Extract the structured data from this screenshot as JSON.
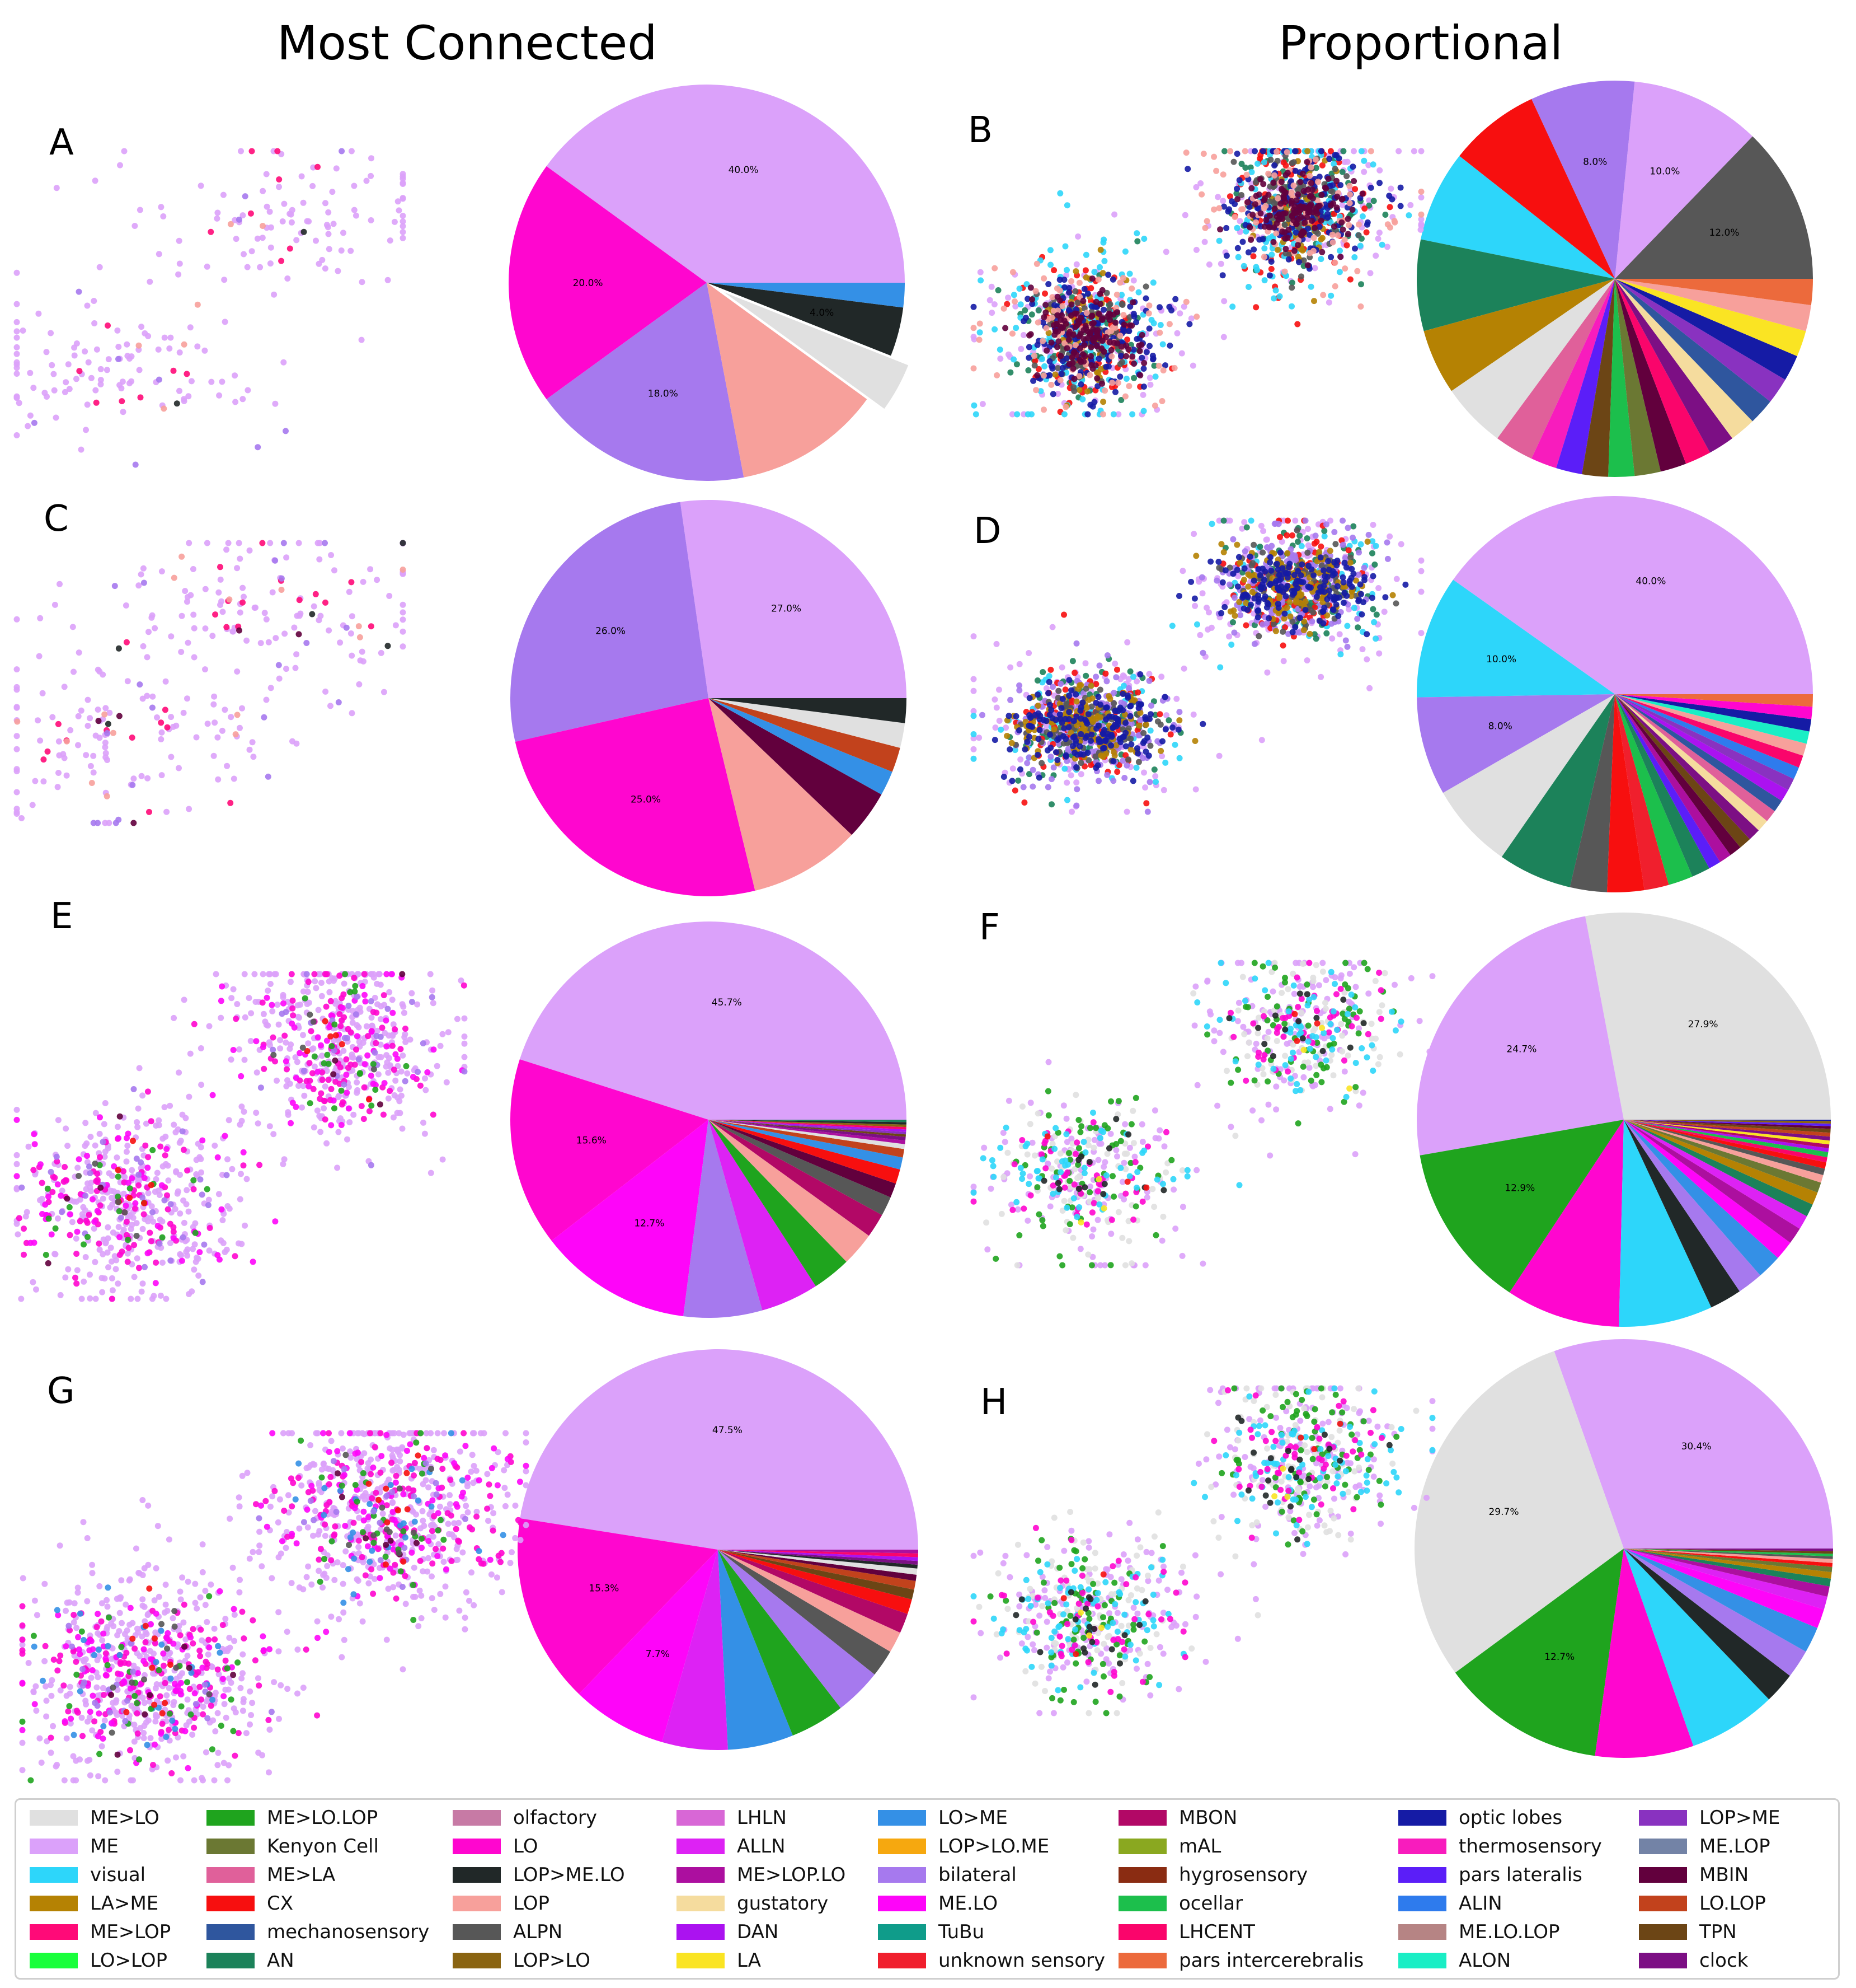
{
  "titles": {
    "left": "Most Connected",
    "right": "Proportional"
  },
  "colors": {
    "ME>LO": "#e0e0e0",
    "ME": "#dba1fa",
    "visual": "#2dd6fa",
    "LA>ME": "#b58203",
    "ME>LOP": "#ff0a78",
    "LO>LOP": "#1aff3c",
    "ME>LO.LOP": "#1fa41e",
    "Kenyon Cell": "#6b7833",
    "ME>LA": "#e0609a",
    "CX": "#f70f0f",
    "mechanosensory": "#2f569e",
    "AN": "#1c825a",
    "olfactory": "#c77aa5",
    "LO": "#ff06cf",
    "LOP>ME.LO": "#212828",
    "LOP": "#f7a09b",
    "ALPN": "#575757",
    "LOP>LO": "#8a6411",
    "LHLN": "#d867d6",
    "ALLN": "#dd22f4",
    "ME>LOP.LO": "#ac0f9f",
    "gustatory": "#f5dc9e",
    "DAN": "#ab12f0",
    "LA": "#fae423",
    "LO>ME": "#3490e6",
    "LOP>LO.ME": "#f6a80f",
    "bilateral": "#a679ee",
    "ME.LO": "#fe05f9",
    "TuBu": "#0f9c8a",
    "unknown sensory": "#f01f2d",
    "MBON": "#b20866",
    "mAL": "#8aa820",
    "hygrosensory": "#8a2c12",
    "ocellar": "#1cbf4c",
    "LHCENT": "#fa056b",
    "pars intercerebralis": "#ec6a3c",
    "optic lobes": "#151ba5",
    "thermosensory": "#f81cbd",
    "pars lateralis": "#5b1ef8",
    "ALIN": "#2e7bed",
    "ME.LO.LOP": "#b68484",
    "ALON": "#1aeec5",
    "LOP>ME": "#8932c0",
    "ME.LOP": "#7383a6",
    "MBIN": "#62003d",
    "LO.LOP": "#c2421c",
    "TPN": "#6c4515",
    "clock": "#7c0f84"
  },
  "legend": {
    "columns": [
      [
        "ME>LO",
        "ME",
        "visual",
        "LA>ME",
        "ME>LOP",
        "LO>LOP"
      ],
      [
        "ME>LO.LOP",
        "Kenyon Cell",
        "ME>LA",
        "CX",
        "mechanosensory",
        "AN"
      ],
      [
        "olfactory",
        "LO",
        "LOP>ME.LO",
        "LOP",
        "ALPN",
        "LOP>LO"
      ],
      [
        "LHLN",
        "ALLN",
        "ME>LOP.LO",
        "gustatory",
        "DAN",
        "LA"
      ],
      [
        "LO>ME",
        "LOP>LO.ME",
        "bilateral",
        "ME.LO",
        "TuBu",
        "unknown sensory"
      ],
      [
        "MBON",
        "mAL",
        "hygrosensory",
        "ocellar",
        "LHCENT",
        "pars intercerebralis"
      ],
      [
        "optic lobes",
        "thermosensory",
        "pars lateralis",
        "ALIN",
        "ME.LO.LOP",
        "ALON"
      ],
      [
        "LOP>ME",
        "ME.LOP",
        "MBIN",
        "LO.LOP",
        "TPN",
        "clock"
      ]
    ]
  },
  "chart_data": [
    {
      "panel": "A",
      "type": "pie",
      "start_angle": 0,
      "slices": [
        [
          "ME",
          40,
          "40.0%"
        ],
        [
          "LO",
          20,
          "20.0%"
        ],
        [
          "bilateral",
          18,
          "18.0%"
        ],
        [
          "LOP",
          12,
          ""
        ],
        [
          "ME>LO",
          4,
          ""
        ],
        [
          "LOP>ME.LO",
          4,
          "4.0%"
        ],
        [
          "LO>ME",
          2,
          ""
        ]
      ],
      "explode": [
        4
      ],
      "scatter": [
        [
          "ME",
          200,
          460,
          180
        ],
        [
          "ME>LOP",
          15,
          260,
          180
        ],
        [
          "LOP",
          6,
          300,
          260
        ],
        [
          "LOP>ME.LO",
          2,
          240,
          140
        ],
        [
          "bilateral",
          10,
          170,
          560
        ]
      ]
    },
    {
      "panel": "B",
      "type": "pie",
      "start_angle": 0,
      "slices": [
        [
          "ALPN",
          12,
          "12.0%"
        ],
        [
          "ME",
          10,
          "10.0%"
        ],
        [
          "bilateral",
          8,
          "8.0%"
        ],
        [
          "CX",
          7,
          ""
        ],
        [
          "visual",
          7,
          ""
        ],
        [
          "AN",
          7,
          ""
        ],
        [
          "LA>ME",
          5,
          ""
        ],
        [
          "ME>LO",
          5,
          ""
        ],
        [
          "ME>LA",
          3,
          ""
        ],
        [
          "thermosensory",
          2,
          ""
        ],
        [
          "pars lateralis",
          2,
          ""
        ],
        [
          "TPN",
          2,
          ""
        ],
        [
          "ocellar",
          2,
          ""
        ],
        [
          "Kenyon Cell",
          2,
          ""
        ],
        [
          "MBIN",
          2,
          ""
        ],
        [
          "LHCENT",
          2,
          ""
        ],
        [
          "clock",
          2,
          ""
        ],
        [
          "gustatory",
          2,
          ""
        ],
        [
          "mechanosensory",
          2,
          ""
        ],
        [
          "LOP>ME",
          2,
          ""
        ],
        [
          "optic lobes",
          2,
          ""
        ],
        [
          "LA",
          2,
          ""
        ],
        [
          "LOP",
          2,
          ""
        ],
        [
          "pars intercerebralis",
          2,
          ""
        ]
      ],
      "scatter": [
        [
          "ME",
          220,
          320,
          200
        ],
        [
          "AN",
          140,
          180,
          150
        ],
        [
          "CX",
          200,
          150,
          200
        ],
        [
          "visual",
          260,
          200,
          250
        ],
        [
          "LA>ME",
          120,
          100,
          150
        ],
        [
          "ALPN",
          200,
          120,
          120
        ],
        [
          "optic lobes",
          300,
          200,
          150
        ],
        [
          "LOP",
          180,
          260,
          150
        ],
        [
          "MBIN",
          260,
          140,
          100
        ]
      ]
    },
    {
      "panel": "C",
      "type": "pie",
      "start_angle": 0,
      "slices": [
        [
          "ME",
          27,
          "27.0%"
        ],
        [
          "bilateral",
          26,
          "26.0%"
        ],
        [
          "LO",
          25,
          "25.0%"
        ],
        [
          "LOP",
          9,
          ""
        ],
        [
          "MBIN",
          4,
          ""
        ],
        [
          "LO>ME",
          2,
          ""
        ],
        [
          "LO.LOP",
          2,
          ""
        ],
        [
          "ME>LO",
          2,
          ""
        ],
        [
          "LOP>ME.LO",
          2,
          ""
        ]
      ],
      "scatter": [
        [
          "ME",
          230,
          520,
          230
        ],
        [
          "ME>LOP",
          25,
          300,
          200
        ],
        [
          "LOP",
          15,
          340,
          180
        ],
        [
          "bilateral",
          20,
          160,
          600
        ],
        [
          "MBIN",
          5,
          260,
          260
        ],
        [
          "LOP>ME.LO",
          5,
          300,
          200
        ]
      ]
    },
    {
      "panel": "D",
      "type": "pie",
      "start_angle": 0,
      "slices": [
        [
          "ME",
          40,
          "40.0%"
        ],
        [
          "visual",
          10,
          "10.0%"
        ],
        [
          "bilateral",
          8,
          "8.0%"
        ],
        [
          "ME>LO",
          7,
          ""
        ],
        [
          "AN",
          6,
          ""
        ],
        [
          "ALPN",
          3,
          ""
        ],
        [
          "CX",
          3,
          ""
        ],
        [
          "unknown sensory",
          2,
          ""
        ],
        [
          "ocellar",
          2,
          ""
        ],
        [
          "AN",
          1.5,
          ""
        ],
        [
          "pars lateralis",
          1,
          ""
        ],
        [
          "ME>LOP.LO",
          1,
          ""
        ],
        [
          "MBIN",
          1,
          ""
        ],
        [
          "TPN",
          1,
          ""
        ],
        [
          "clock",
          1,
          ""
        ],
        [
          "gustatory",
          1,
          ""
        ],
        [
          "ME>LA",
          1,
          ""
        ],
        [
          "mechanosensory",
          1,
          ""
        ],
        [
          "DAN",
          1,
          ""
        ],
        [
          "LOP>ME",
          1,
          ""
        ],
        [
          "ALIN",
          1,
          ""
        ],
        [
          "LHCENT",
          1,
          ""
        ],
        [
          "LOP",
          1,
          ""
        ],
        [
          "ALON",
          1,
          ""
        ],
        [
          "optic lobes",
          1,
          ""
        ],
        [
          "LO",
          1,
          ""
        ],
        [
          "pars intercerebralis",
          1,
          ""
        ]
      ],
      "scatter": [
        [
          "ME",
          320,
          280,
          200
        ],
        [
          "visual",
          120,
          260,
          150
        ],
        [
          "AN",
          160,
          180,
          150
        ],
        [
          "CX",
          180,
          150,
          150
        ],
        [
          "bilateral",
          320,
          200,
          150
        ],
        [
          "ALPN",
          200,
          160,
          100
        ],
        [
          "LA>ME",
          240,
          180,
          100
        ],
        [
          "optic lobes",
          330,
          220,
          100
        ]
      ]
    },
    {
      "panel": "E",
      "type": "pie",
      "start_angle": 0,
      "slices": [
        [
          "ME",
          45.7,
          "45.7%"
        ],
        [
          "LO",
          15.6,
          "15.6%"
        ],
        [
          "ME.LO",
          12.7,
          "12.7%"
        ],
        [
          "bilateral",
          6.5,
          ""
        ],
        [
          "ALLN",
          4.8,
          ""
        ],
        [
          "ME>LO.LOP",
          3.2,
          ""
        ],
        [
          "LOP",
          2.8,
          ""
        ],
        [
          "MBON",
          2.0,
          ""
        ],
        [
          "ALPN",
          1.6,
          ""
        ],
        [
          "MBIN",
          1.2,
          ""
        ],
        [
          "CX",
          1.2,
          ""
        ],
        [
          "LO>ME",
          1.0,
          ""
        ],
        [
          "LO.LOP",
          0.7,
          ""
        ],
        [
          "ME>LO",
          0.4,
          ""
        ],
        [
          "ME>LOP.LO",
          0.3,
          ""
        ],
        [
          "clock",
          0.3,
          ""
        ],
        [
          "TPN",
          0.2,
          ""
        ],
        [
          "LOP>ME",
          0.2,
          ""
        ],
        [
          "DAN",
          0.2,
          ""
        ],
        [
          "LHCENT",
          0.2,
          ""
        ],
        [
          "LOP>LO",
          0.2,
          ""
        ],
        [
          "LOP>ME.LO",
          0.2,
          ""
        ],
        [
          "AN",
          0.2,
          ""
        ]
      ],
      "scatter": [
        [
          "ME",
          700,
          280,
          260
        ],
        [
          "LO",
          180,
          260,
          200
        ],
        [
          "ME.LO",
          120,
          300,
          200
        ],
        [
          "bilateral",
          60,
          260,
          200
        ],
        [
          "ME>LO.LOP",
          40,
          180,
          200
        ],
        [
          "CX",
          12,
          60,
          200
        ],
        [
          "MBIN",
          8,
          200,
          200
        ],
        [
          "ALPN",
          10,
          120,
          160
        ]
      ]
    },
    {
      "panel": "F",
      "type": "pie",
      "start_angle": 0,
      "slices": [
        [
          "ME>LO",
          27.9,
          "27.9%"
        ],
        [
          "ME",
          24.7,
          "24.7%"
        ],
        [
          "ME>LO.LOP",
          12.9,
          "12.9%"
        ],
        [
          "LO",
          8.9,
          ""
        ],
        [
          "visual",
          7.3,
          ""
        ],
        [
          "LOP>ME.LO",
          2.5,
          ""
        ],
        [
          "bilateral",
          2.0,
          ""
        ],
        [
          "LO>ME",
          1.9,
          ""
        ],
        [
          "ME.LO",
          1.5,
          ""
        ],
        [
          "ME>LOP.LO",
          1.3,
          ""
        ],
        [
          "ALLN",
          1.1,
          ""
        ],
        [
          "AN",
          1.0,
          ""
        ],
        [
          "LA>ME",
          1.0,
          ""
        ],
        [
          "Kenyon Cell",
          0.8,
          ""
        ],
        [
          "LOP",
          0.6,
          ""
        ],
        [
          "ALPN",
          0.5,
          ""
        ],
        [
          "CX",
          0.5,
          ""
        ],
        [
          "LHCENT",
          0.4,
          ""
        ],
        [
          "ocellar",
          0.4,
          ""
        ],
        [
          "DAN",
          0.3,
          ""
        ],
        [
          "MBON",
          0.3,
          ""
        ],
        [
          "LA",
          0.3,
          ""
        ],
        [
          "clock",
          0.3,
          ""
        ],
        [
          "LO.LOP",
          0.3,
          ""
        ],
        [
          "TPN",
          0.3,
          ""
        ],
        [
          "MBIN",
          0.2,
          ""
        ],
        [
          "pars lateralis",
          0.2,
          ""
        ],
        [
          "LOP>LO",
          0.2,
          ""
        ],
        [
          "optic lobes",
          0.1,
          ""
        ]
      ],
      "scatter": [
        [
          "ME",
          260,
          260,
          220
        ],
        [
          "ME>LO",
          160,
          240,
          200
        ],
        [
          "ME>LO.LOP",
          120,
          200,
          220
        ],
        [
          "LO",
          90,
          200,
          150
        ],
        [
          "visual",
          120,
          260,
          150
        ],
        [
          "LOP>ME.LO",
          30,
          200,
          150
        ],
        [
          "LA",
          6,
          120,
          160
        ],
        [
          "CX",
          6,
          200,
          120
        ]
      ]
    },
    {
      "panel": "G",
      "type": "pie",
      "start_angle": 0,
      "slices": [
        [
          "ME",
          47.5,
          "47.5%"
        ],
        [
          "LO",
          15.3,
          "15.3%"
        ],
        [
          "ME.LO",
          7.7,
          "7.7%"
        ],
        [
          "ALLN",
          5.3,
          ""
        ],
        [
          "LO>ME",
          5.3,
          ""
        ],
        [
          "ME>LO.LOP",
          4.4,
          ""
        ],
        [
          "bilateral",
          3.8,
          ""
        ],
        [
          "ALPN",
          2.2,
          ""
        ],
        [
          "LOP",
          1.7,
          ""
        ],
        [
          "MBON",
          1.6,
          ""
        ],
        [
          "CX",
          1.2,
          ""
        ],
        [
          "TPN",
          0.8,
          ""
        ],
        [
          "LO.LOP",
          0.7,
          ""
        ],
        [
          "MBIN",
          0.5,
          ""
        ],
        [
          "ME>LO",
          0.5,
          ""
        ],
        [
          "LOP>ME.LO",
          0.3,
          ""
        ],
        [
          "clock",
          0.3,
          ""
        ],
        [
          "DAN",
          0.3,
          ""
        ],
        [
          "LHCENT",
          0.3,
          ""
        ],
        [
          "ME>LOP.LO",
          0.3,
          ""
        ]
      ],
      "scatter": [
        [
          "ME",
          900,
          300,
          280
        ],
        [
          "LO",
          260,
          300,
          200
        ],
        [
          "ME.LO",
          160,
          300,
          220
        ],
        [
          "LO>ME",
          60,
          280,
          200
        ],
        [
          "ME>LO.LOP",
          60,
          240,
          220
        ],
        [
          "bilateral",
          40,
          300,
          180
        ],
        [
          "CX",
          20,
          80,
          200
        ],
        [
          "MBIN",
          14,
          200,
          200
        ],
        [
          "ALPN",
          20,
          140,
          160
        ]
      ]
    },
    {
      "panel": "H",
      "type": "pie",
      "start_angle": 0,
      "slices": [
        [
          "ME",
          30.4,
          "30.4%"
        ],
        [
          "ME>LO",
          29.7,
          "29.7%"
        ],
        [
          "ME>LO.LOP",
          12.7,
          "12.7%"
        ],
        [
          "LO",
          7.6,
          ""
        ],
        [
          "visual",
          6.8,
          ""
        ],
        [
          "LOP>ME.LO",
          2.4,
          ""
        ],
        [
          "bilateral",
          2.2,
          ""
        ],
        [
          "LO>ME",
          2.0,
          ""
        ],
        [
          "ME.LO",
          1.5,
          ""
        ],
        [
          "ALLN",
          1.0,
          ""
        ],
        [
          "ME>LOP.LO",
          0.8,
          ""
        ],
        [
          "AN",
          0.6,
          ""
        ],
        [
          "LA>ME",
          0.5,
          ""
        ],
        [
          "Kenyon Cell",
          0.4,
          ""
        ],
        [
          "CX",
          0.3,
          ""
        ],
        [
          "LOP",
          0.3,
          ""
        ],
        [
          "ALPN",
          0.2,
          ""
        ],
        [
          "ocellar",
          0.2,
          ""
        ],
        [
          "TPN",
          0.2,
          ""
        ],
        [
          "clock",
          0.2,
          ""
        ]
      ],
      "scatter": [
        [
          "ME",
          300,
          260,
          220
        ],
        [
          "ME>LO",
          200,
          240,
          200
        ],
        [
          "ME>LO.LOP",
          140,
          180,
          220
        ],
        [
          "visual",
          160,
          260,
          150
        ],
        [
          "LO",
          100,
          200,
          160
        ],
        [
          "LOP>ME.LO",
          40,
          180,
          150
        ],
        [
          "CX",
          6,
          200,
          120
        ],
        [
          "LA",
          6,
          120,
          160
        ]
      ]
    }
  ]
}
